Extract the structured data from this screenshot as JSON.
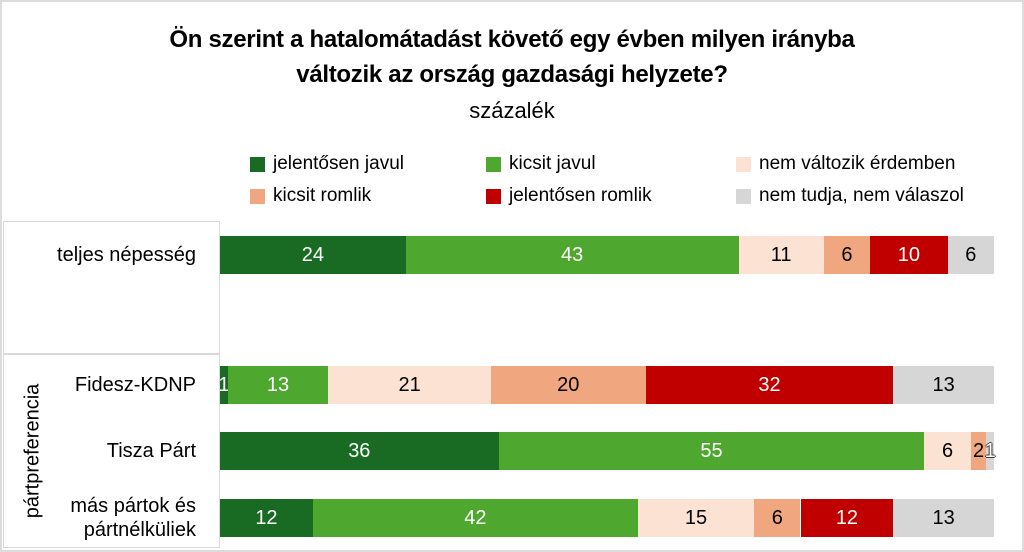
{
  "title": {
    "line1": "Ön szerint a hatalomátadást követő egy évben milyen irányba",
    "line2": "változik az ország gazdasági helyzete?",
    "subtitle": "százalék"
  },
  "chart_data": {
    "type": "bar",
    "stacked": true,
    "orientation": "horizontal",
    "value_unit": "percent",
    "xlim": [
      0,
      100
    ],
    "grid": false,
    "legend_position": "top",
    "categories": [
      "teljes népesség",
      "Fidesz-KDNP",
      "Tisza Párt",
      "más pártok és pártnélküliek"
    ],
    "category_group": {
      "label": "pártpreferencia",
      "applies_to": [
        "Fidesz-KDNP",
        "Tisza Párt",
        "más pártok és pártnélküliek"
      ]
    },
    "series": [
      {
        "name": "jelentősen javul",
        "color": "#196B24",
        "values": [
          24,
          1,
          36,
          12
        ]
      },
      {
        "name": "kicsit javul",
        "color": "#4EA72E",
        "values": [
          43,
          13,
          55,
          42
        ]
      },
      {
        "name": "nem változik érdemben",
        "color": "#FBE2D2",
        "values": [
          11,
          21,
          6,
          15
        ]
      },
      {
        "name": "kicsit romlik",
        "color": "#F0A67F",
        "values": [
          6,
          20,
          2,
          6
        ]
      },
      {
        "name": "jelentősen romlik",
        "color": "#C00000",
        "values": [
          10,
          32,
          0,
          12
        ]
      },
      {
        "name": "nem tudja, nem válaszol",
        "color": "#D6D6D6",
        "values": [
          6,
          13,
          1,
          13
        ]
      }
    ],
    "label_style_overrides": [
      {
        "category": 2,
        "series": 5,
        "style": "outline-white"
      }
    ]
  }
}
